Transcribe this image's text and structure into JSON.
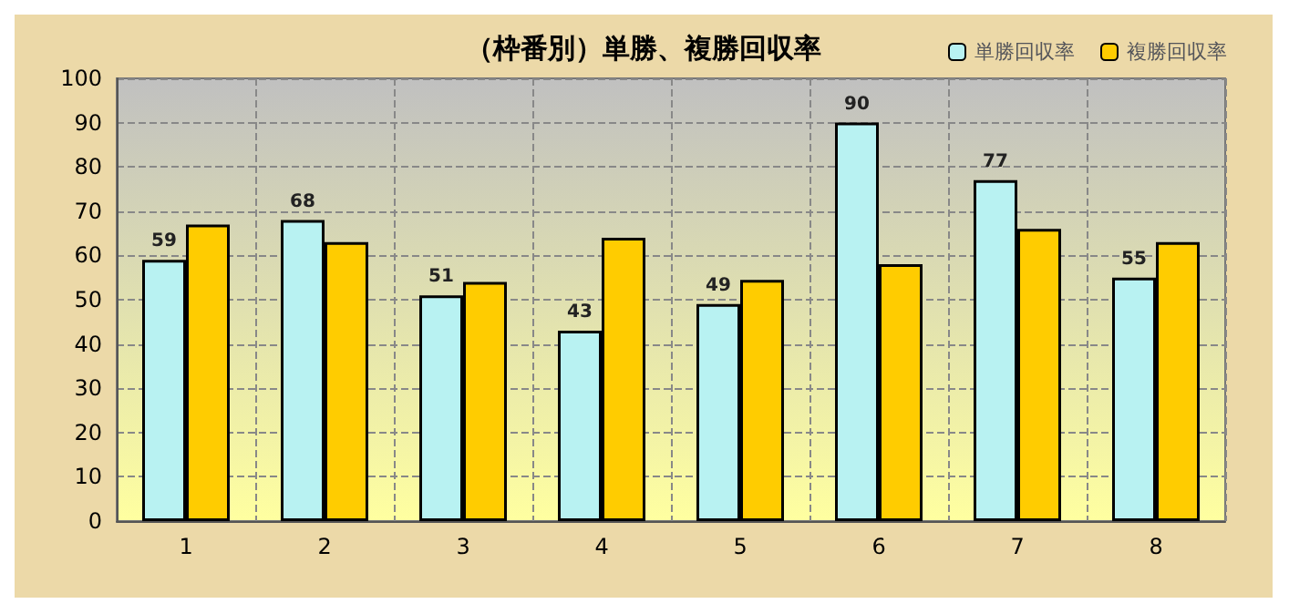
{
  "chart_data": {
    "type": "bar",
    "title": "（枠番別）単勝、複勝回収率",
    "categories": [
      "1",
      "2",
      "3",
      "4",
      "5",
      "6",
      "7",
      "8"
    ],
    "series": [
      {
        "name": "単勝回収率",
        "color": "#b8f2f2",
        "values": [
          59,
          68,
          51,
          43,
          49,
          90,
          77,
          55
        ],
        "value_labels": [
          "59",
          "68",
          "51",
          "43",
          "49",
          "90",
          "77",
          "55"
        ]
      },
      {
        "name": "複勝回収率",
        "color": "#ffcc00",
        "values": [
          67,
          63,
          54,
          64,
          54.5,
          58,
          66,
          63
        ]
      }
    ],
    "ylim": [
      0,
      100
    ],
    "yticks": [
      0,
      10,
      20,
      30,
      40,
      50,
      60,
      70,
      80,
      90,
      100
    ],
    "grid": true,
    "legend": "top right"
  }
}
